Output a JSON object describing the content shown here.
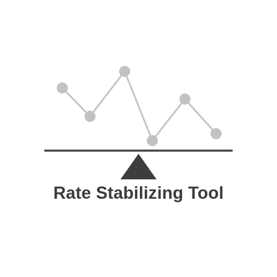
{
  "logo": {
    "title": "Rate Stabilizing Tool",
    "icon": "seesaw-line-chart-icon",
    "colors": {
      "text": "#3b3b3b",
      "beam": "#4a4a4a",
      "fulcrum": "#3d3d3d",
      "line": "#c4c4c4",
      "points": "#c2c2c2"
    }
  }
}
